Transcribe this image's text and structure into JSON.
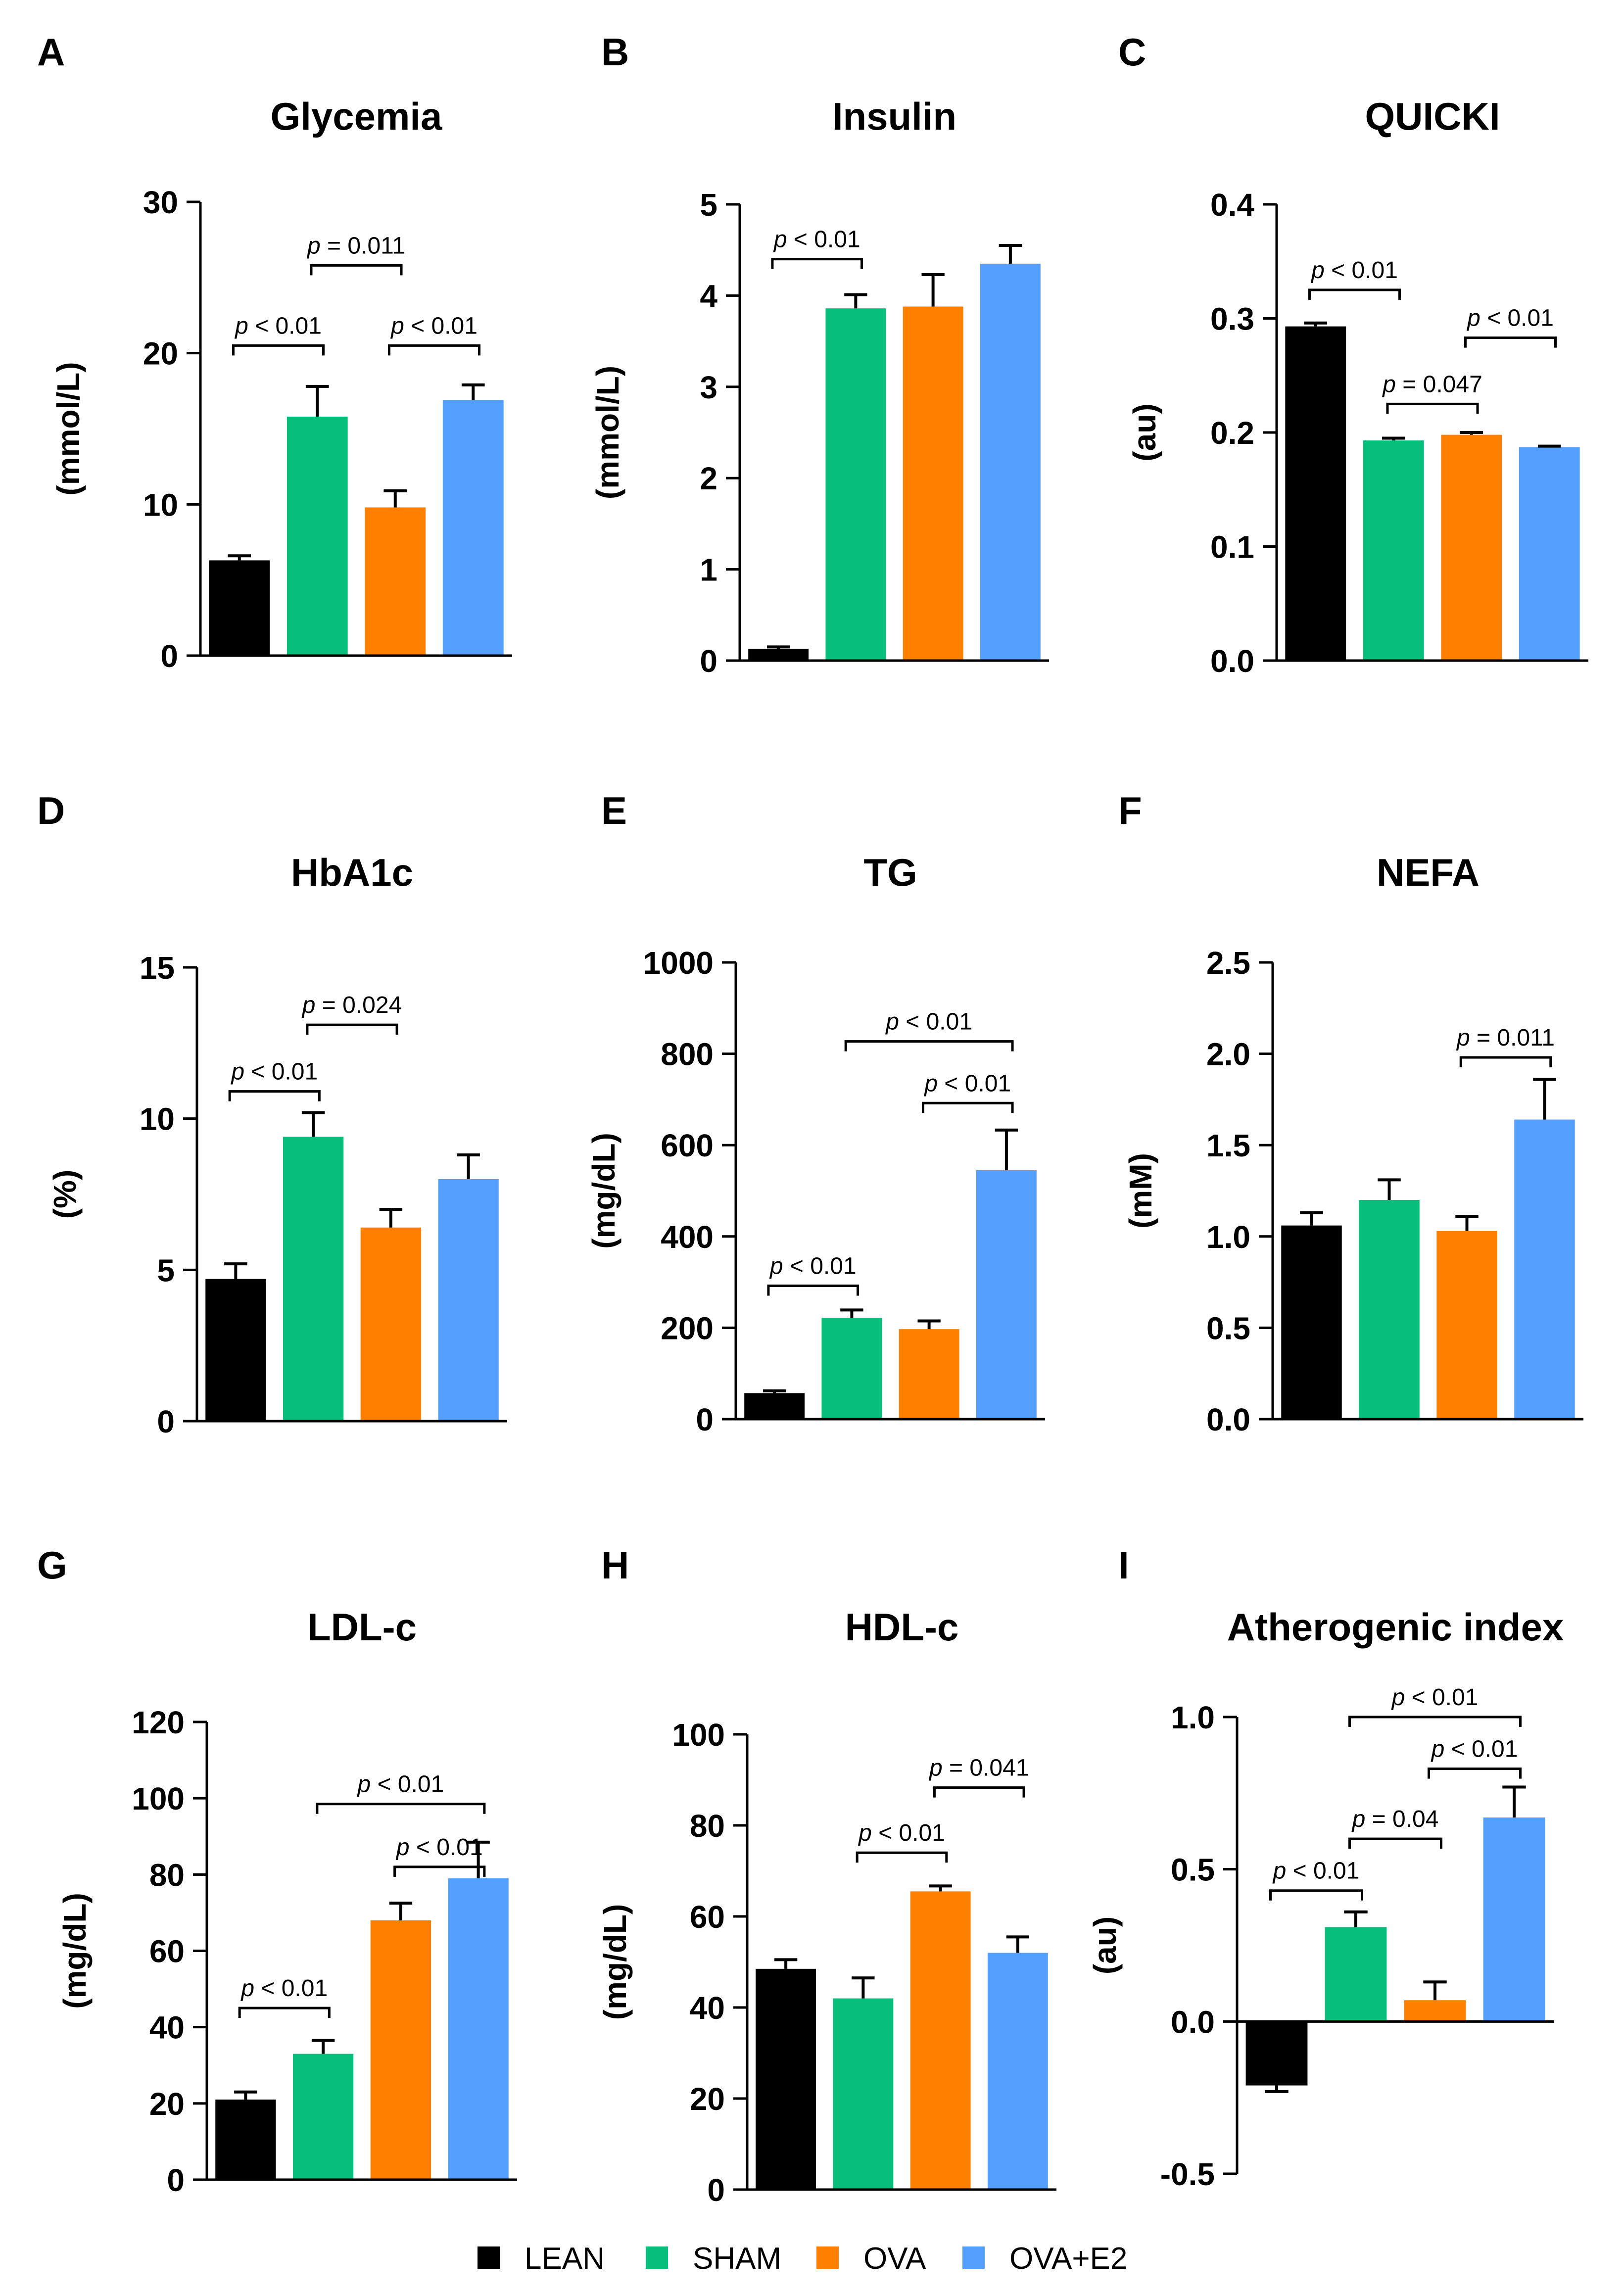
{
  "chart_data": [
    {
      "type": "bar",
      "letter": "A",
      "title": "Glycemia",
      "ylabel": "(mmol/L)",
      "ylim": [
        0,
        30
      ],
      "yticks": [
        "0",
        "10",
        "20",
        "30"
      ],
      "categories": [
        "LEAN",
        "SHAM",
        "OVA",
        "OVA+E2"
      ],
      "values": [
        6.3,
        15.8,
        9.8,
        16.9
      ],
      "errors": [
        0.3,
        2.0,
        1.1,
        1.0
      ],
      "annotations": [
        {
          "a": 0,
          "b": 1,
          "y": 20.5,
          "italic": "p",
          "rest": " < 0.01"
        },
        {
          "a": 2,
          "b": 3,
          "y": 20.5,
          "italic": "p",
          "rest": " < 0.01"
        },
        {
          "a": 1,
          "b": 2,
          "y": 25.8,
          "italic": "p",
          "rest": " = 0.011"
        }
      ]
    },
    {
      "type": "bar",
      "letter": "B",
      "title": "Insulin",
      "ylabel": "(mmol/L)",
      "ylim": [
        0,
        5
      ],
      "yticks": [
        "0",
        "1",
        "2",
        "3",
        "4",
        "5"
      ],
      "categories": [
        "LEAN",
        "SHAM",
        "OVA",
        "OVA+E2"
      ],
      "values": [
        0.13,
        3.86,
        3.88,
        4.35
      ],
      "errors": [
        0.02,
        0.15,
        0.35,
        0.2
      ],
      "annotations": [
        {
          "a": 0,
          "b": 1,
          "y": 4.4,
          "italic": "p",
          "rest": " < 0.01"
        }
      ]
    },
    {
      "type": "bar",
      "letter": "C",
      "title": "QUICKI",
      "ylabel": "(au)",
      "ylim": [
        0,
        0.4
      ],
      "yticks": [
        "0.0",
        "0.1",
        "0.2",
        "0.3",
        "0.4"
      ],
      "categories": [
        "LEAN",
        "SHAM",
        "OVA",
        "OVA+E2"
      ],
      "values": [
        0.293,
        0.193,
        0.198,
        0.187
      ],
      "errors": [
        0.003,
        0.002,
        0.002,
        0.001
      ],
      "annotations": [
        {
          "a": 0,
          "b": 1,
          "y": 0.325,
          "italic": "p",
          "rest": " < 0.01"
        },
        {
          "a": 1,
          "b": 2,
          "y": 0.225,
          "italic": "p",
          "rest": " = 0.047"
        },
        {
          "a": 2,
          "b": 3,
          "y": 0.283,
          "italic": "p",
          "rest": " < 0.01"
        }
      ]
    },
    {
      "type": "bar",
      "letter": "D",
      "title": "HbA1c",
      "ylabel": "(%)",
      "ylim": [
        0,
        15
      ],
      "yticks": [
        "0",
        "5",
        "10",
        "15"
      ],
      "categories": [
        "LEAN",
        "SHAM",
        "OVA",
        "OVA+E2"
      ],
      "values": [
        4.7,
        9.4,
        6.4,
        8.0
      ],
      "errors": [
        0.5,
        0.8,
        0.6,
        0.8
      ],
      "annotations": [
        {
          "a": 0,
          "b": 1,
          "y": 10.9,
          "italic": "p",
          "rest": " < 0.01"
        },
        {
          "a": 1,
          "b": 2,
          "y": 13.1,
          "italic": "p",
          "rest": " = 0.024"
        }
      ]
    },
    {
      "type": "bar",
      "letter": "E",
      "title": "TG",
      "ylabel": "(mg/dL)",
      "ylim": [
        0,
        1000
      ],
      "yticks": [
        "0",
        "200",
        "400",
        "600",
        "800",
        "1000"
      ],
      "categories": [
        "LEAN",
        "SHAM",
        "OVA",
        "OVA+E2"
      ],
      "values": [
        57,
        222,
        197,
        545
      ],
      "errors": [
        5,
        17,
        18,
        88
      ],
      "annotations": [
        {
          "a": 0,
          "b": 1,
          "y": 292,
          "italic": "p",
          "rest": " < 0.01"
        },
        {
          "a": 2,
          "b": 3,
          "y": 692,
          "italic": "p",
          "rest": " < 0.01"
        },
        {
          "a": 1,
          "b": 3,
          "y": 827,
          "italic": "p",
          "rest": " < 0.01"
        }
      ]
    },
    {
      "type": "bar",
      "letter": "F",
      "title": "NEFA",
      "ylabel": "(mM)",
      "ylim": [
        0,
        2.5
      ],
      "yticks": [
        "0.0",
        "0.5",
        "1.0",
        "1.5",
        "2.0",
        "2.5"
      ],
      "categories": [
        "LEAN",
        "SHAM",
        "OVA",
        "OVA+E2"
      ],
      "values": [
        1.06,
        1.2,
        1.03,
        1.64
      ],
      "errors": [
        0.07,
        0.11,
        0.08,
        0.22
      ],
      "annotations": [
        {
          "a": 2,
          "b": 3,
          "y": 1.98,
          "italic": "p",
          "rest": " = 0.011"
        }
      ]
    },
    {
      "type": "bar",
      "letter": "G",
      "title": "LDL-c",
      "ylabel": "(mg/dL)",
      "ylim": [
        0,
        120
      ],
      "yticks": [
        "0",
        "20",
        "40",
        "60",
        "80",
        "100",
        "120"
      ],
      "categories": [
        "LEAN",
        "SHAM",
        "OVA",
        "OVA+E2"
      ],
      "values": [
        21,
        33,
        68,
        79
      ],
      "errors": [
        2,
        3.5,
        4.5,
        9.5
      ],
      "annotations": [
        {
          "a": 0,
          "b": 1,
          "y": 45,
          "italic": "p",
          "rest": " < 0.01"
        },
        {
          "a": 2,
          "b": 3,
          "y": 82,
          "italic": "p",
          "rest": " < 0.01"
        },
        {
          "a": 1,
          "b": 3,
          "y": 98.5,
          "italic": "p",
          "rest": " < 0.01"
        }
      ]
    },
    {
      "type": "bar",
      "letter": "H",
      "title": "HDL-c",
      "ylabel": "(mg/dL)",
      "ylim": [
        0,
        100
      ],
      "yticks": [
        "0",
        "20",
        "40",
        "60",
        "80",
        "100"
      ],
      "categories": [
        "LEAN",
        "SHAM",
        "OVA",
        "OVA+E2"
      ],
      "values": [
        48.5,
        42,
        65.5,
        52
      ],
      "errors": [
        2,
        4.5,
        1.2,
        3.5
      ],
      "annotations": [
        {
          "a": 1,
          "b": 2,
          "y": 74,
          "italic": "p",
          "rest": " < 0.01"
        },
        {
          "a": 2,
          "b": 3,
          "y": 88.3,
          "italic": "p",
          "rest": " = 0.041"
        }
      ]
    },
    {
      "type": "bar",
      "letter": "I",
      "title": "Atherogenic index",
      "ylabel": "(au)",
      "ylim": [
        -0.5,
        1.0
      ],
      "yticks": [
        "-0.5",
        "0.0",
        "0.5",
        "1.0"
      ],
      "categories": [
        "LEAN",
        "SHAM",
        "OVA",
        "OVA+E2"
      ],
      "values": [
        -0.21,
        0.31,
        0.07,
        0.67
      ],
      "errors": [
        0.02,
        0.05,
        0.06,
        0.1
      ],
      "annotations": [
        {
          "a": 0,
          "b": 1,
          "y": 0.43,
          "italic": "p",
          "rest": " < 0.01"
        },
        {
          "a": 1,
          "b": 2,
          "y": 0.6,
          "italic": "p",
          "rest": " = 0.04"
        },
        {
          "a": 2,
          "b": 3,
          "y": 0.83,
          "italic": "p",
          "rest": " < 0.01"
        },
        {
          "a": 1,
          "b": 3,
          "y": 1.0,
          "italic": "p",
          "rest": " < 0.01"
        }
      ]
    }
  ],
  "legend": [
    {
      "label": "LEAN",
      "color": "#000000"
    },
    {
      "label": "SHAM",
      "color": "#07bf7b"
    },
    {
      "label": "OVA",
      "color": "#ff7f00"
    },
    {
      "label": "OVA+E2",
      "color": "#55a0ff"
    }
  ]
}
